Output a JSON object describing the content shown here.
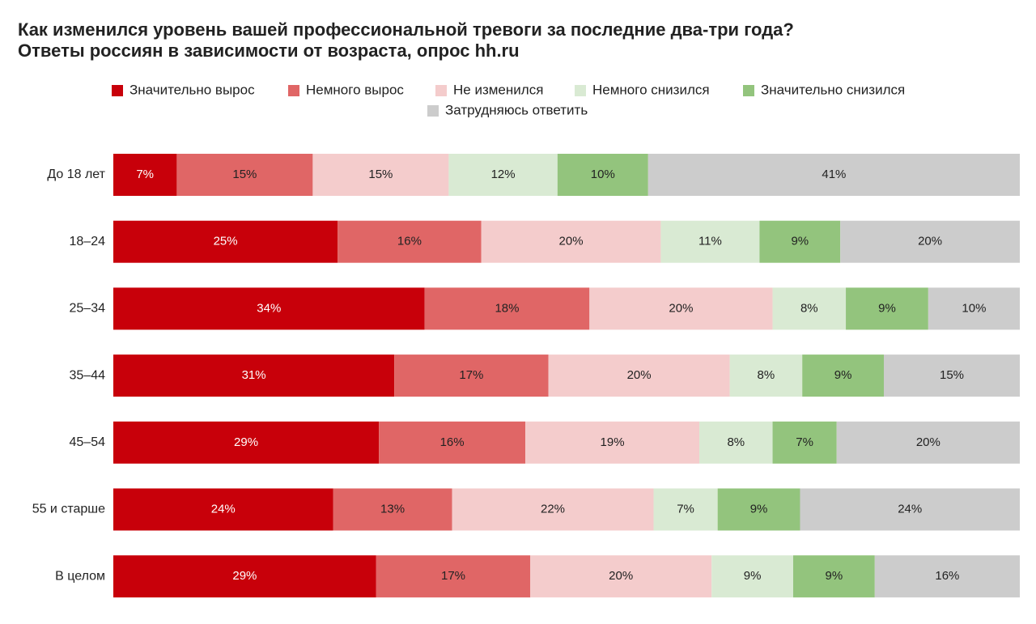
{
  "chart_data": {
    "type": "stacked-bar",
    "title": "Как изменился уровень вашей профессиональной тревоги за последние два-три года?",
    "subtitle": "Ответы россиян в зависимости от возраста, опрос hh.ru",
    "categories": [
      "До 18 лет",
      "18–24",
      "25–34",
      "35–44",
      "45–54",
      "55 и старше",
      "В целом"
    ],
    "series": [
      {
        "name": "Значительно вырос",
        "color": "#c8000a",
        "values": [
          7,
          25,
          34,
          31,
          29,
          24,
          29
        ],
        "value_labels": [
          "7%",
          "25%",
          "34%",
          "31%",
          "29%",
          "24%",
          "29%"
        ]
      },
      {
        "name": "Немного вырос",
        "color": "#e06666",
        "values": [
          15,
          16,
          18,
          17,
          16,
          13,
          17
        ],
        "value_labels": [
          "15%",
          "16%",
          "18%",
          "17%",
          "16%",
          "13%",
          "17%"
        ]
      },
      {
        "name": "Не изменился",
        "color": "#f4cccc",
        "values": [
          15,
          20,
          20,
          20,
          19,
          22,
          20
        ],
        "value_labels": [
          "15%",
          "20%",
          "20%",
          "20%",
          "19%",
          "22%",
          "20%"
        ]
      },
      {
        "name": "Немного снизился",
        "color": "#d9ead3",
        "values": [
          12,
          11,
          8,
          8,
          8,
          7,
          9
        ],
        "value_labels": [
          "12%",
          "11%",
          "8%",
          "8%",
          "8%",
          "7%",
          "9%"
        ]
      },
      {
        "name": "Значительно снизился",
        "color": "#93c47d",
        "values": [
          10,
          9,
          9,
          9,
          7,
          9,
          9
        ],
        "value_labels": [
          "10%",
          "9%",
          "9%",
          "9%",
          "7%",
          "9%",
          "9%"
        ]
      },
      {
        "name": "Затрудняюсь ответить",
        "color": "#cccccc",
        "values": [
          41,
          20,
          10,
          15,
          20,
          24,
          16
        ],
        "value_labels": [
          "41%",
          "20%",
          "10%",
          "15%",
          "20%",
          "24%",
          "16%"
        ]
      }
    ]
  }
}
